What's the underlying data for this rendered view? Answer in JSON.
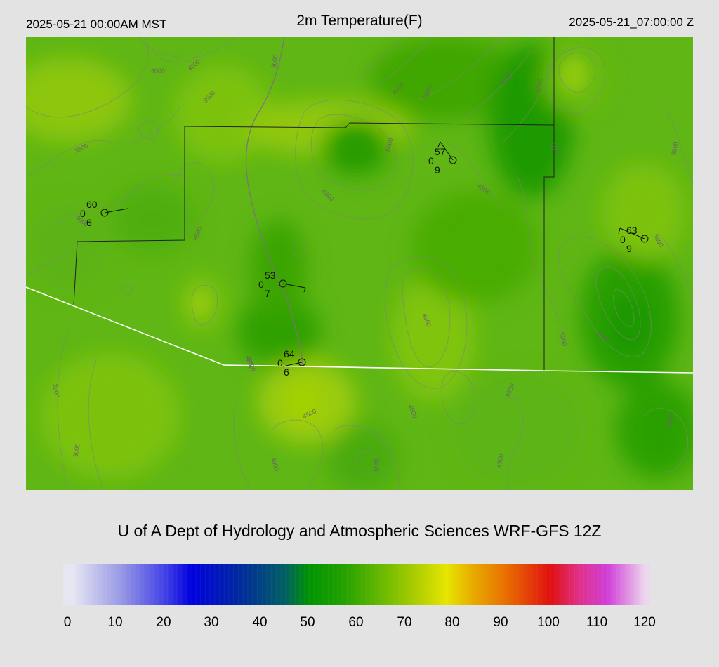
{
  "header": {
    "valid_local": "2025-05-21 00:00AM MST",
    "title": "2m Temperature(F)",
    "valid_utc": "2025-05-21_07:00:00 Z"
  },
  "credit": "U of A Dept of Hydrology and Atmospheric Sciences WRF-GFS 12Z",
  "colorbar": {
    "ticks": [
      "0",
      "10",
      "20",
      "30",
      "40",
      "50",
      "60",
      "70",
      "80",
      "90",
      "100",
      "110",
      "120"
    ],
    "stops": [
      {
        "value": 0,
        "color": "#e6e6f2"
      },
      {
        "value": 10,
        "color": "#9a9ae6"
      },
      {
        "value": 20,
        "color": "#3c3ce6"
      },
      {
        "value": 25,
        "color": "#0000e0"
      },
      {
        "value": 35,
        "color": "#0028a0"
      },
      {
        "value": 45,
        "color": "#006060"
      },
      {
        "value": 50,
        "color": "#009400"
      },
      {
        "value": 57,
        "color": "#22a000"
      },
      {
        "value": 65,
        "color": "#66b800"
      },
      {
        "value": 72,
        "color": "#a8cc00"
      },
      {
        "value": 79,
        "color": "#e6e600"
      },
      {
        "value": 84,
        "color": "#e8b000"
      },
      {
        "value": 92,
        "color": "#e86a00"
      },
      {
        "value": 101,
        "color": "#e01010"
      },
      {
        "value": 107,
        "color": "#e0308a"
      },
      {
        "value": 113,
        "color": "#d040d8"
      },
      {
        "value": 121,
        "color": "#ecd8ec"
      }
    ]
  },
  "map": {
    "base_color": "#5fb614",
    "stations": [
      {
        "id": "stn-a",
        "temp": "60",
        "left": "0",
        "bottom": "6"
      },
      {
        "id": "stn-b",
        "temp": "57",
        "left": "0",
        "bottom": "9"
      },
      {
        "id": "stn-c",
        "temp": "63",
        "left": "0",
        "bottom": "9"
      },
      {
        "id": "stn-d",
        "temp": "53",
        "left": "0",
        "bottom": "7"
      },
      {
        "id": "stn-e",
        "temp": "64",
        "left": "0",
        "bottom": "6"
      }
    ],
    "contour_labels": [
      "4000",
      "3000",
      "4000",
      "3500",
      "4000",
      "4500",
      "5000",
      "3500",
      "5000",
      "5000",
      "4500",
      "4000",
      "4500",
      "5000",
      "4500",
      "5500",
      "4500",
      "5000",
      "5000",
      "3500",
      "4500",
      "3000",
      "4500",
      "4000",
      "4500",
      "5000",
      "4500",
      "4500",
      "5000",
      "5000",
      "5000"
    ]
  }
}
